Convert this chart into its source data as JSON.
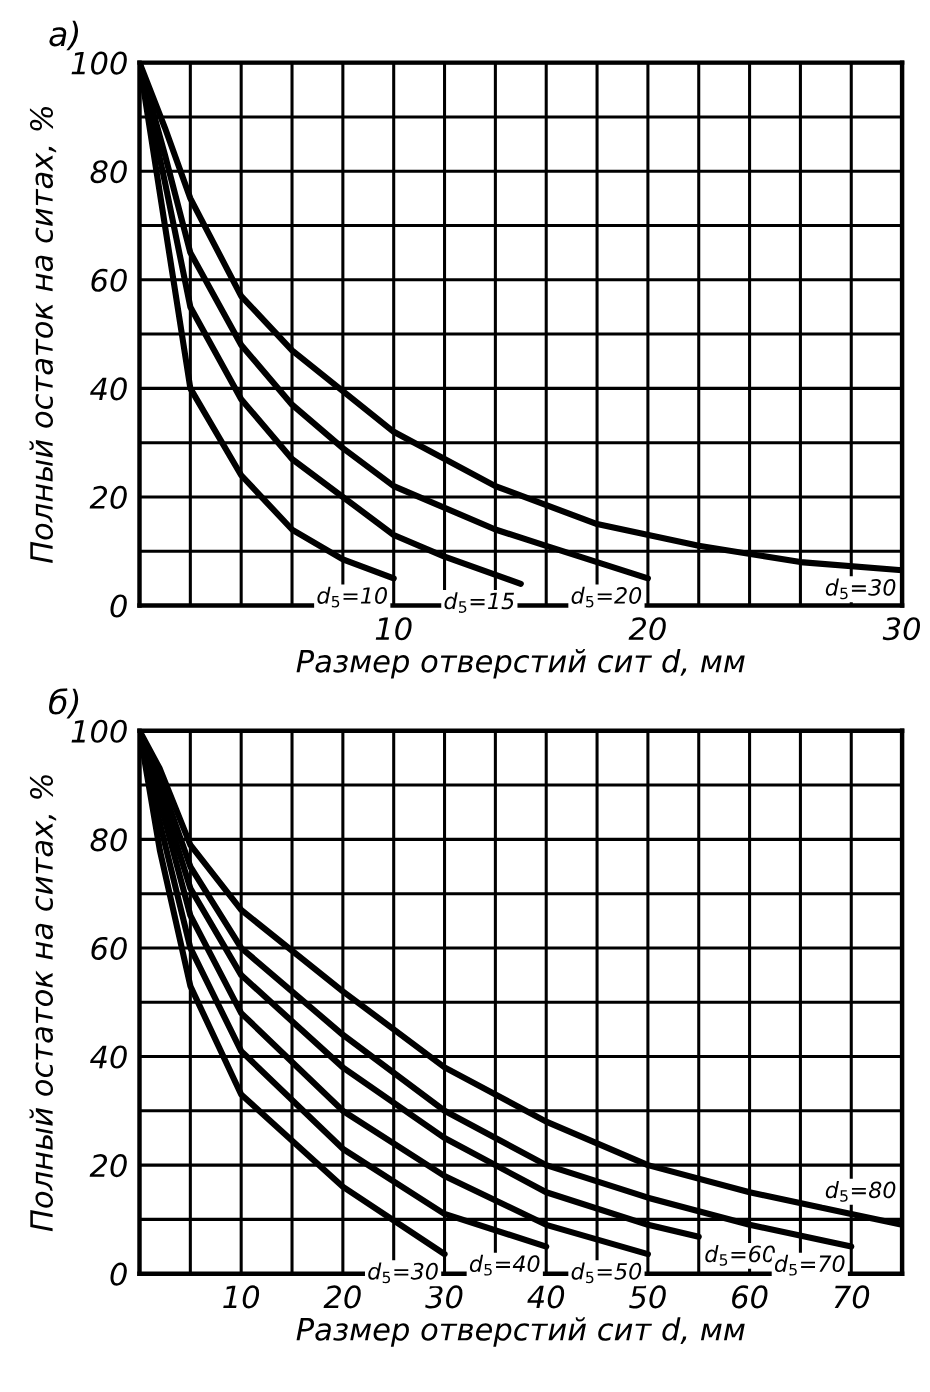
{
  "chart_data": [
    {
      "type": "line",
      "title": "а)",
      "xlabel": "Размер отверстий сит d, мм",
      "ylabel": "Полный остаток на ситах, %",
      "xlim": [
        0,
        30
      ],
      "ylim": [
        0,
        100
      ],
      "xticks": [
        {
          "value": 0,
          "label": null
        },
        {
          "value": 2,
          "label": null
        },
        {
          "value": 4,
          "label": null
        },
        {
          "value": 6,
          "label": null
        },
        {
          "value": 8,
          "label": null
        },
        10,
        {
          "value": 12,
          "label": null
        },
        {
          "value": 14,
          "label": null
        },
        {
          "value": 16,
          "label": null
        },
        {
          "value": 18,
          "label": null
        },
        20,
        {
          "value": 22,
          "label": null
        },
        {
          "value": 24,
          "label": null
        },
        {
          "value": 26,
          "label": null
        },
        {
          "value": 28,
          "label": null
        },
        30
      ],
      "yticks": [
        0,
        {
          "value": 10,
          "label": null
        },
        20,
        {
          "value": 30,
          "label": null
        },
        40,
        {
          "value": 50,
          "label": null
        },
        60,
        {
          "value": 70,
          "label": null
        },
        80,
        {
          "value": 90,
          "label": null
        },
        100
      ],
      "grid": true,
      "legend": false,
      "marker": "none",
      "line_style": "solid",
      "series": [
        {
          "color": "#000000",
          "x": [
            0,
            1,
            2,
            4,
            6,
            8,
            10
          ],
          "values": [
            100,
            70,
            40,
            24,
            14,
            8.5,
            5
          ]
        },
        {
          "color": "#000000",
          "x": [
            0,
            1,
            2,
            4,
            6,
            8,
            10,
            12,
            15
          ],
          "values": [
            100,
            78,
            55,
            38,
            27,
            20,
            13,
            9,
            4
          ]
        },
        {
          "color": "#000000",
          "x": [
            0,
            1,
            2,
            4,
            6,
            8,
            10,
            14,
            16,
            20
          ],
          "values": [
            100,
            83,
            65,
            48,
            37,
            29,
            22,
            14,
            11,
            5
          ]
        },
        {
          "color": "#000000",
          "x": [
            0,
            1,
            2,
            4,
            6,
            10,
            14,
            18,
            22,
            26,
            30
          ],
          "values": [
            100,
            88,
            75,
            57,
            47,
            32,
            22,
            15,
            11,
            8,
            6.5
          ]
        }
      ],
      "annotations": [
        "d$_{5}$=10",
        "d$_{5}$=15",
        "d$_{5}$=20",
        "d$_{5}$=30"
      ]
    },
    {
      "type": "line",
      "title": "б)",
      "xlabel": "Размер отверстий сит d, мм",
      "ylabel": "Полный остаток на ситах, %",
      "xlim": [
        0,
        75
      ],
      "ylim": [
        0,
        100
      ],
      "xticks": [
        {
          "value": 0,
          "label": null
        },
        {
          "value": 5,
          "label": null
        },
        10,
        {
          "value": 15,
          "label": null
        },
        20,
        {
          "value": 25,
          "label": null
        },
        30,
        {
          "value": 35,
          "label": null
        },
        40,
        {
          "value": 45,
          "label": null
        },
        50,
        {
          "value": 55,
          "label": null
        },
        60,
        {
          "value": 65,
          "label": null
        },
        70,
        {
          "value": 75,
          "label": null
        }
      ],
      "yticks": [
        0,
        {
          "value": 10,
          "label": null
        },
        20,
        {
          "value": 30,
          "label": null
        },
        40,
        {
          "value": 50,
          "label": null
        },
        60,
        {
          "value": 70,
          "label": null
        },
        80,
        {
          "value": 90,
          "label": null
        },
        100
      ],
      "grid": true,
      "legend": false,
      "marker": "none",
      "line_style": "solid",
      "series": [
        {
          "color": "#000000",
          "x": [
            0,
            2,
            5,
            10,
            20,
            30
          ],
          "values": [
            100,
            78,
            53,
            33,
            16,
            3.6
          ]
        },
        {
          "color": "#000000",
          "x": [
            0,
            2,
            5,
            10,
            20,
            30,
            40
          ],
          "values": [
            100,
            83,
            60,
            41,
            23,
            11,
            5
          ]
        },
        {
          "color": "#000000",
          "x": [
            0,
            2,
            5,
            10,
            20,
            30,
            40,
            50
          ],
          "values": [
            100,
            87,
            66,
            48,
            30,
            18,
            9,
            3.6
          ]
        },
        {
          "color": "#000000",
          "x": [
            0,
            2,
            5,
            10,
            20,
            30,
            40,
            50,
            55
          ],
          "values": [
            100,
            89,
            71,
            55,
            38,
            25,
            15,
            9,
            6.8
          ]
        },
        {
          "color": "#000000",
          "x": [
            0,
            2,
            5,
            10,
            20,
            30,
            40,
            50,
            60,
            70
          ],
          "values": [
            100,
            91,
            75,
            60,
            44,
            30,
            20,
            14,
            9,
            5
          ]
        },
        {
          "color": "#000000",
          "x": [
            0,
            2,
            5,
            10,
            20,
            30,
            40,
            50,
            60,
            70,
            75
          ],
          "values": [
            100,
            93,
            79,
            67,
            52,
            38,
            28,
            20,
            15,
            11,
            9
          ]
        }
      ],
      "annotations": [
        "d$_{5}$=30",
        "d$_{5}$=40",
        "d$_{5}$=50",
        "d$_{5}$=60",
        "d$_{5}$=70",
        "d$_{5}$=80"
      ]
    }
  ]
}
